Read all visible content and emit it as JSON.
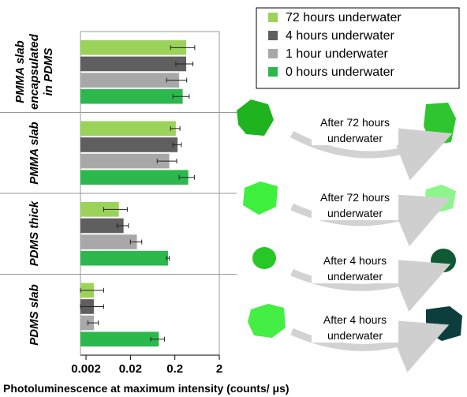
{
  "chart_data": {
    "type": "bar",
    "orientation": "horizontal",
    "categories": [
      "PMMA slab encapsulated in PDMS",
      "PMMA slab",
      "PDMS thick",
      "PDMS slab"
    ],
    "series": [
      {
        "name": "72 hours underwater",
        "color": "#9bd35a",
        "values": [
          0.36,
          0.21,
          0.011,
          0.003
        ],
        "errors": [
          0.2,
          0.05,
          0.006,
          0.002
        ]
      },
      {
        "name": "4 hours underwater",
        "color": "#5f5f5f",
        "values": [
          0.36,
          0.23,
          0.014,
          0.003
        ],
        "errors": [
          0.15,
          0.05,
          0.004,
          0.002
        ]
      },
      {
        "name": "1 hour underwater",
        "color": "#a8a8a8",
        "values": [
          0.25,
          0.15,
          0.028,
          0.003
        ],
        "errors": [
          0.12,
          0.07,
          0.008,
          0.0008
        ]
      },
      {
        "name": "0 hours underwater",
        "color": "#2db84d",
        "values": [
          0.3,
          0.4,
          0.14,
          0.087
        ],
        "errors": [
          0.12,
          0.15,
          0.01,
          0.03
        ]
      }
    ],
    "xlabel": "Photoluminescence at maximum intensity (counts/ μs)",
    "log_x": true,
    "xlim": [
      0.0015,
      2
    ],
    "xticks": [
      0.002,
      0.02,
      0.2,
      2
    ],
    "annotations": [
      [
        "After 72 hours",
        "underwater"
      ],
      [
        "After 72 hours",
        "underwater"
      ],
      [
        "After 4 hours",
        "underwater"
      ],
      [
        "After 4 hours",
        "underwater"
      ]
    ]
  }
}
